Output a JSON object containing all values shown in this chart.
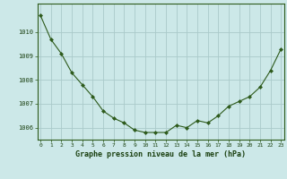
{
  "x": [
    0,
    1,
    2,
    3,
    4,
    5,
    6,
    7,
    8,
    9,
    10,
    11,
    12,
    13,
    14,
    15,
    16,
    17,
    18,
    19,
    20,
    21,
    22,
    23
  ],
  "y": [
    1010.7,
    1009.7,
    1009.1,
    1008.3,
    1007.8,
    1007.3,
    1006.7,
    1006.4,
    1006.2,
    1005.9,
    1005.8,
    1005.8,
    1005.8,
    1006.1,
    1006.0,
    1006.3,
    1006.2,
    1006.5,
    1006.9,
    1007.1,
    1007.3,
    1007.7,
    1008.4,
    1009.3
  ],
  "line_color": "#2d5a1b",
  "marker": "D",
  "marker_size": 2.0,
  "bg_color": "#cce8e8",
  "grid_color": "#aacaca",
  "xlabel": "Graphe pression niveau de la mer (hPa)",
  "xlabel_color": "#1a4010",
  "tick_color": "#1a4010",
  "ylim": [
    1005.5,
    1011.2
  ],
  "yticks": [
    1006,
    1007,
    1008,
    1009,
    1010
  ],
  "xlim": [
    -0.3,
    23.3
  ],
  "xticks": [
    0,
    1,
    2,
    3,
    4,
    5,
    6,
    7,
    8,
    9,
    10,
    11,
    12,
    13,
    14,
    15,
    16,
    17,
    18,
    19,
    20,
    21,
    22,
    23
  ],
  "spine_color": "#2d5a1b"
}
